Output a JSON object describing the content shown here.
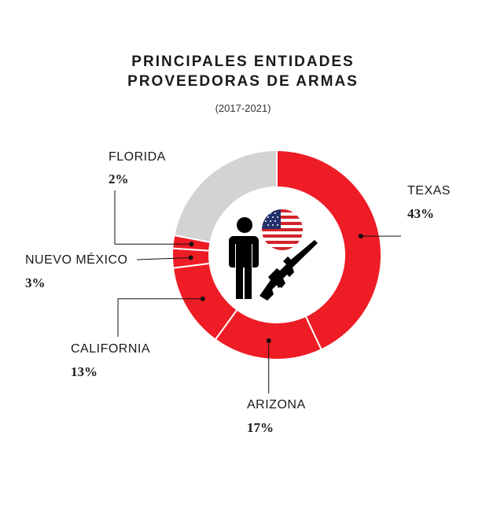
{
  "chart_data": {
    "type": "pie",
    "title_line1": "PRINCIPALES ENTIDADES",
    "title_line2": "PROVEEDORAS DE ARMAS",
    "subtitle": "(2017-2021)",
    "slices": [
      {
        "label": "TEXAS",
        "value": 43,
        "value_label": "43%",
        "color": "#ee1c25"
      },
      {
        "label": "ARIZONA",
        "value": 17,
        "value_label": "17%",
        "color": "#ee1c25"
      },
      {
        "label": "CALIFORNIA",
        "value": 13,
        "value_label": "13%",
        "color": "#ee1c25"
      },
      {
        "label": "NUEVO MÉXICO",
        "value": 3,
        "value_label": "3%",
        "color": "#ee1c25"
      },
      {
        "label": "FLORIDA",
        "value": 2,
        "value_label": "2%",
        "color": "#ee1c25"
      },
      {
        "label": "",
        "value": 22,
        "value_label": "",
        "color": "#d3d3d3"
      }
    ],
    "start": "top",
    "direction": "clockwise",
    "center_icons": [
      "person-icon",
      "usa-flag-icon",
      "rifle-icon"
    ]
  }
}
